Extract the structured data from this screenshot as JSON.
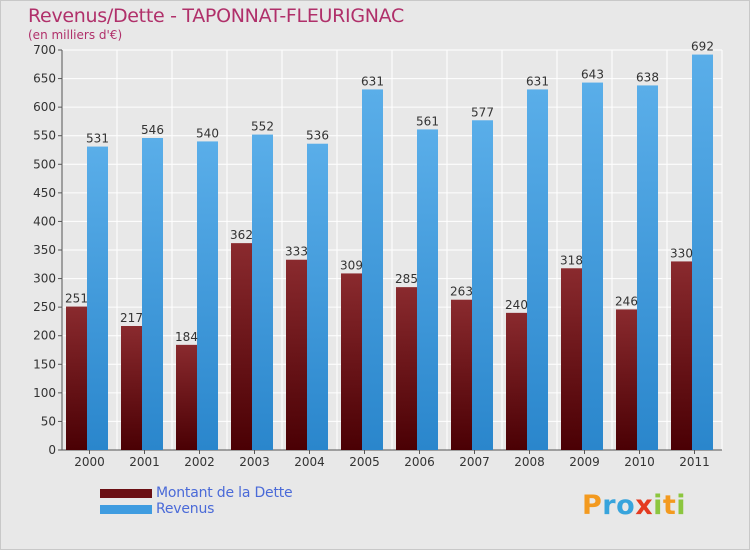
{
  "header": {
    "title": "Revenus/Dette - TAPONNAT-FLEURIGNAC",
    "subtitle": "(en milliers d'€)"
  },
  "legend": {
    "items": [
      {
        "label": "Montant de la Dette",
        "color": "#6b0f14"
      },
      {
        "label": "Revenus",
        "color": "#3f9ce0"
      }
    ]
  },
  "logo": {
    "letters": [
      {
        "ch": "P",
        "color": "#f39a1f"
      },
      {
        "ch": "r",
        "color": "#38a4dc"
      },
      {
        "ch": "o",
        "color": "#38a4dc"
      },
      {
        "ch": "x",
        "color": "#e43a20"
      },
      {
        "ch": "i",
        "color": "#8cc63f"
      },
      {
        "ch": "t",
        "color": "#f39a1f"
      },
      {
        "ch": "i",
        "color": "#8cc63f"
      }
    ]
  },
  "chart_data": {
    "type": "bar",
    "categories": [
      "2000",
      "2001",
      "2002",
      "2003",
      "2004",
      "2005",
      "2006",
      "2007",
      "2008",
      "2009",
      "2010",
      "2011"
    ],
    "series": [
      {
        "name": "Montant de la Dette",
        "color": "#6b0f14",
        "values": [
          251,
          217,
          184,
          362,
          333,
          309,
          285,
          263,
          240,
          318,
          246,
          330
        ]
      },
      {
        "name": "Revenus",
        "color": "#3f9ce0",
        "values": [
          531,
          546,
          540,
          552,
          536,
          631,
          561,
          577,
          631,
          643,
          638,
          692
        ]
      }
    ],
    "ylim": [
      0,
      700
    ],
    "yticks": [
      0,
      50,
      100,
      150,
      200,
      250,
      300,
      350,
      400,
      450,
      500,
      550,
      600,
      650,
      700
    ],
    "grid": true,
    "legend": "bottom-left"
  }
}
